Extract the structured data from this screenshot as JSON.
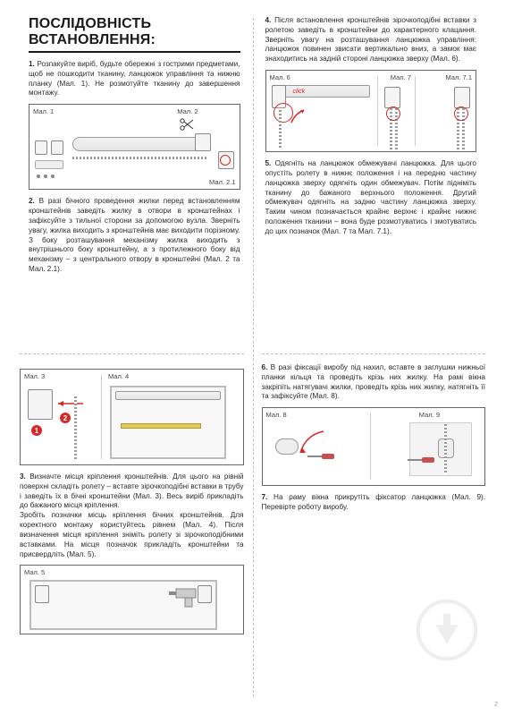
{
  "title": "ПОСЛІДОВНІСТЬ ВСТАНОВЛЕННЯ:",
  "steps": {
    "s1": "<b>1.</b> Розпакуйте виріб, будьте обережні з гострими предметами, щоб не пошкодити тканину, ланцюжок управління та нижню планку (Мал. 1). Не розмотуйте тканину до завершення монтажу.",
    "s2": "<b>2.</b> В разі бічного проведення жилки перед встановленням кронштейнів заведіть жилку в отвори в кронштейнах і зафіксуйте з тильної сторони за допомогою вузла. Зверніть увагу, жилка виходить з кронштейнів має виходити порізному. З боку розташування механізму жилка виходить з внутрішнього боку кронштейну, а з протилежного боку від механізму – з центрального отвору в кронштейні (Мал. 2 та Мал. 2.1).",
    "s3": "<b>3.</b> Визначте місця кріплення кронштейнів. Для цього на рівній поверхні складіть ролету – вставте зірочкоподібні вставки в трубу і заведіть їх в бічні кронштейни (Мал. 3). Весь виріб прикладіть до бажаного місця кріплення.<br>Зробіть позначки місць кріплення бічних кронштейнів. Для коректного монтажу користуйтесь рівнем (Мал. 4). Після визначення місця кріплення зніміть ролету зі зірочкоподібними вставками. На місця позначок прикладіть кронштейни та присвердліть (Мал. 5).",
    "s4": "<b>4.</b> Після встановлення кронштейнів зірочкоподібні вставки з ролетою заведіть в кронштейни до характерного клацання. Зверніть увагу на розташування ланцюжка управління: ланцюжок повинен звисати вертикально вниз, а замок має знаходитись на задній стороні ланцюжка зверху (Мал. 6).",
    "s5": "<b>5.</b> Одягніть на ланцюжок обмежувачі ланцюжка. Для цього опустіть ролету в нижнє положення і на передню частину ланцюжка зверху одягніть один обмежувач. Потім підніміть тканину до бажаного верхнього положення. Другий обмежувач одягніть на задню частину ланцюжка зверху. Таким чином позначається крайнє верхнє і крайнє нижнє положення тканини – вона буде розмотуватись і змотуватись до цих позначок (Мал. 7 та Мал. 7.1).",
    "s6": "<b>6.</b> В разі фіксації виробу під нахил, вставте в заглушки нижньої планки кільця та проведіть крізь них жилку. На рамі вікна закріпіть натягувачі жилки, проведіть крізь них жилку, натягніть її та зафіксуйте (Мал. 8).",
    "s7": "<b>7.</b> На раму вікна прикрутіть фіксатор ланцюжка (Мал. 9). Перевірте роботу виробу."
  },
  "figs": {
    "f1": "Мал. 1",
    "f2": "Мал. 2",
    "f21": "Мал. 2.1",
    "f3": "Мал. 3",
    "f4": "Мал. 4",
    "f5": "Мал. 5",
    "f6": "Мал. 6",
    "f7": "Мал. 7",
    "f71": "Мал. 7.1",
    "f8": "Мал. 8",
    "f9": "Мал. 9"
  },
  "click_label": "click",
  "page_number": "2",
  "colors": {
    "accent": "#d62828",
    "border": "#666666",
    "text": "#2a2a2a",
    "dash": "#bdbdbd",
    "bg": "#ffffff"
  }
}
